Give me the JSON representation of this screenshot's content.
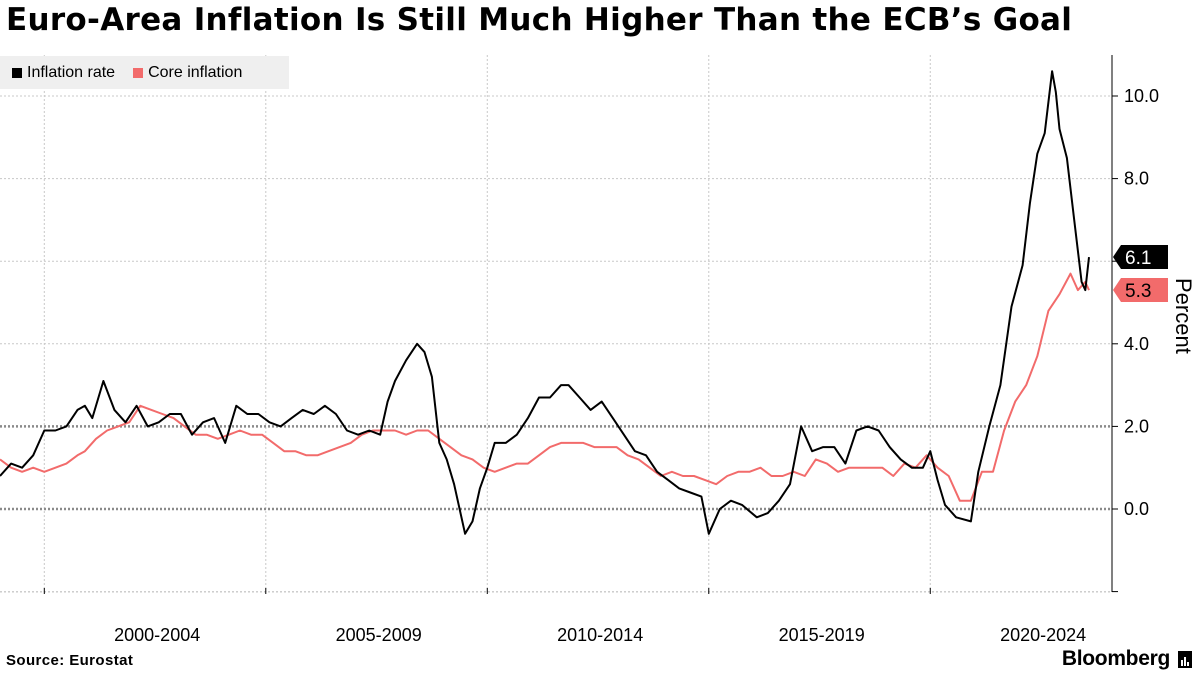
{
  "header": {
    "title": "Euro-Area Inflation Is Still Much Higher Than the ECB’s Goal"
  },
  "legend": {
    "items": [
      {
        "label": "Inflation rate",
        "color": "#000000"
      },
      {
        "label": "Core inflation",
        "color": "#f26b6b"
      }
    ]
  },
  "footer": {
    "source": "Source:  Eurostat",
    "brand": "Bloomberg"
  },
  "chart_data": {
    "type": "line",
    "title": "Euro-Area Inflation Is Still Much Higher Than the ECB’s Goal",
    "ylabel": "Percent",
    "xlabel": "",
    "x_start": "1999-01",
    "x_end": "2023-08",
    "x_tick_labels": [
      "2000-2004",
      "2005-2009",
      "2010-2014",
      "2015-2019",
      "2020-2024"
    ],
    "ylim": [
      -2,
      11
    ],
    "y_ticks": [
      0.0,
      2.0,
      4.0,
      8.0,
      10.0
    ],
    "y_tick_labels": [
      "0.0",
      "2.0",
      "4.0",
      "8.0",
      "10.0"
    ],
    "reference_lines": [
      0,
      2
    ],
    "grid": true,
    "legend_position": "top-left",
    "series": [
      {
        "name": "Inflation rate",
        "color": "#000000",
        "last_value_label": "6.1",
        "points": [
          [
            "1999-01",
            0.8
          ],
          [
            "1999-04",
            1.1
          ],
          [
            "1999-07",
            1.0
          ],
          [
            "1999-10",
            1.3
          ],
          [
            "2000-01",
            1.9
          ],
          [
            "2000-04",
            1.9
          ],
          [
            "2000-07",
            2.0
          ],
          [
            "2000-10",
            2.4
          ],
          [
            "2000-12",
            2.5
          ],
          [
            "2001-02",
            2.2
          ],
          [
            "2001-05",
            3.1
          ],
          [
            "2001-08",
            2.4
          ],
          [
            "2001-11",
            2.1
          ],
          [
            "2002-02",
            2.5
          ],
          [
            "2002-05",
            2.0
          ],
          [
            "2002-08",
            2.1
          ],
          [
            "2002-11",
            2.3
          ],
          [
            "2003-02",
            2.3
          ],
          [
            "2003-05",
            1.8
          ],
          [
            "2003-08",
            2.1
          ],
          [
            "2003-11",
            2.2
          ],
          [
            "2004-02",
            1.6
          ],
          [
            "2004-05",
            2.5
          ],
          [
            "2004-08",
            2.3
          ],
          [
            "2004-11",
            2.3
          ],
          [
            "2005-02",
            2.1
          ],
          [
            "2005-05",
            2.0
          ],
          [
            "2005-08",
            2.2
          ],
          [
            "2005-11",
            2.4
          ],
          [
            "2006-02",
            2.3
          ],
          [
            "2006-05",
            2.5
          ],
          [
            "2006-08",
            2.3
          ],
          [
            "2006-11",
            1.9
          ],
          [
            "2007-02",
            1.8
          ],
          [
            "2007-05",
            1.9
          ],
          [
            "2007-08",
            1.8
          ],
          [
            "2007-10",
            2.6
          ],
          [
            "2007-12",
            3.1
          ],
          [
            "2008-03",
            3.6
          ],
          [
            "2008-06",
            4.0
          ],
          [
            "2008-08",
            3.8
          ],
          [
            "2008-10",
            3.2
          ],
          [
            "2008-12",
            1.6
          ],
          [
            "2009-02",
            1.2
          ],
          [
            "2009-04",
            0.6
          ],
          [
            "2009-07",
            -0.6
          ],
          [
            "2009-09",
            -0.3
          ],
          [
            "2009-11",
            0.5
          ],
          [
            "2010-01",
            1.0
          ],
          [
            "2010-03",
            1.6
          ],
          [
            "2010-06",
            1.6
          ],
          [
            "2010-09",
            1.8
          ],
          [
            "2010-12",
            2.2
          ],
          [
            "2011-03",
            2.7
          ],
          [
            "2011-06",
            2.7
          ],
          [
            "2011-09",
            3.0
          ],
          [
            "2011-11",
            3.0
          ],
          [
            "2012-02",
            2.7
          ],
          [
            "2012-05",
            2.4
          ],
          [
            "2012-08",
            2.6
          ],
          [
            "2012-11",
            2.2
          ],
          [
            "2013-02",
            1.8
          ],
          [
            "2013-05",
            1.4
          ],
          [
            "2013-08",
            1.3
          ],
          [
            "2013-11",
            0.9
          ],
          [
            "2014-02",
            0.7
          ],
          [
            "2014-05",
            0.5
          ],
          [
            "2014-08",
            0.4
          ],
          [
            "2014-11",
            0.3
          ],
          [
            "2015-01",
            -0.6
          ],
          [
            "2015-04",
            0.0
          ],
          [
            "2015-07",
            0.2
          ],
          [
            "2015-10",
            0.1
          ],
          [
            "2016-02",
            -0.2
          ],
          [
            "2016-05",
            -0.1
          ],
          [
            "2016-08",
            0.2
          ],
          [
            "2016-11",
            0.6
          ],
          [
            "2017-02",
            2.0
          ],
          [
            "2017-05",
            1.4
          ],
          [
            "2017-08",
            1.5
          ],
          [
            "2017-11",
            1.5
          ],
          [
            "2018-02",
            1.1
          ],
          [
            "2018-05",
            1.9
          ],
          [
            "2018-08",
            2.0
          ],
          [
            "2018-11",
            1.9
          ],
          [
            "2019-02",
            1.5
          ],
          [
            "2019-05",
            1.2
          ],
          [
            "2019-08",
            1.0
          ],
          [
            "2019-11",
            1.0
          ],
          [
            "2020-01",
            1.4
          ],
          [
            "2020-03",
            0.7
          ],
          [
            "2020-05",
            0.1
          ],
          [
            "2020-08",
            -0.2
          ],
          [
            "2020-12",
            -0.3
          ],
          [
            "2021-02",
            0.9
          ],
          [
            "2021-05",
            2.0
          ],
          [
            "2021-08",
            3.0
          ],
          [
            "2021-11",
            4.9
          ],
          [
            "2022-02",
            5.9
          ],
          [
            "2022-04",
            7.4
          ],
          [
            "2022-06",
            8.6
          ],
          [
            "2022-08",
            9.1
          ],
          [
            "2022-10",
            10.6
          ],
          [
            "2022-11",
            10.1
          ],
          [
            "2022-12",
            9.2
          ],
          [
            "2023-02",
            8.5
          ],
          [
            "2023-04",
            7.0
          ],
          [
            "2023-06",
            5.5
          ],
          [
            "2023-07",
            5.3
          ],
          [
            "2023-08",
            6.1
          ]
        ]
      },
      {
        "name": "Core inflation",
        "color": "#f26b6b",
        "last_value_label": "5.3",
        "points": [
          [
            "1999-01",
            1.2
          ],
          [
            "1999-04",
            1.0
          ],
          [
            "1999-07",
            0.9
          ],
          [
            "1999-10",
            1.0
          ],
          [
            "2000-01",
            0.9
          ],
          [
            "2000-04",
            1.0
          ],
          [
            "2000-07",
            1.1
          ],
          [
            "2000-10",
            1.3
          ],
          [
            "2000-12",
            1.4
          ],
          [
            "2001-03",
            1.7
          ],
          [
            "2001-06",
            1.9
          ],
          [
            "2001-09",
            2.0
          ],
          [
            "2001-12",
            2.1
          ],
          [
            "2002-03",
            2.5
          ],
          [
            "2002-06",
            2.4
          ],
          [
            "2002-09",
            2.3
          ],
          [
            "2002-12",
            2.2
          ],
          [
            "2003-03",
            2.0
          ],
          [
            "2003-06",
            1.8
          ],
          [
            "2003-09",
            1.8
          ],
          [
            "2003-12",
            1.7
          ],
          [
            "2004-03",
            1.8
          ],
          [
            "2004-06",
            1.9
          ],
          [
            "2004-09",
            1.8
          ],
          [
            "2004-12",
            1.8
          ],
          [
            "2005-03",
            1.6
          ],
          [
            "2005-06",
            1.4
          ],
          [
            "2005-09",
            1.4
          ],
          [
            "2005-12",
            1.3
          ],
          [
            "2006-03",
            1.3
          ],
          [
            "2006-06",
            1.4
          ],
          [
            "2006-09",
            1.5
          ],
          [
            "2006-12",
            1.6
          ],
          [
            "2007-03",
            1.8
          ],
          [
            "2007-06",
            1.9
          ],
          [
            "2007-09",
            1.9
          ],
          [
            "2007-12",
            1.9
          ],
          [
            "2008-03",
            1.8
          ],
          [
            "2008-06",
            1.9
          ],
          [
            "2008-09",
            1.9
          ],
          [
            "2008-12",
            1.7
          ],
          [
            "2009-03",
            1.5
          ],
          [
            "2009-06",
            1.3
          ],
          [
            "2009-09",
            1.2
          ],
          [
            "2009-12",
            1.0
          ],
          [
            "2010-03",
            0.9
          ],
          [
            "2010-06",
            1.0
          ],
          [
            "2010-09",
            1.1
          ],
          [
            "2010-12",
            1.1
          ],
          [
            "2011-03",
            1.3
          ],
          [
            "2011-06",
            1.5
          ],
          [
            "2011-09",
            1.6
          ],
          [
            "2011-12",
            1.6
          ],
          [
            "2012-03",
            1.6
          ],
          [
            "2012-06",
            1.5
          ],
          [
            "2012-09",
            1.5
          ],
          [
            "2012-12",
            1.5
          ],
          [
            "2013-03",
            1.3
          ],
          [
            "2013-06",
            1.2
          ],
          [
            "2013-09",
            1.0
          ],
          [
            "2013-12",
            0.8
          ],
          [
            "2014-03",
            0.9
          ],
          [
            "2014-06",
            0.8
          ],
          [
            "2014-09",
            0.8
          ],
          [
            "2014-12",
            0.7
          ],
          [
            "2015-03",
            0.6
          ],
          [
            "2015-06",
            0.8
          ],
          [
            "2015-09",
            0.9
          ],
          [
            "2015-12",
            0.9
          ],
          [
            "2016-03",
            1.0
          ],
          [
            "2016-06",
            0.8
          ],
          [
            "2016-09",
            0.8
          ],
          [
            "2016-12",
            0.9
          ],
          [
            "2017-03",
            0.8
          ],
          [
            "2017-06",
            1.2
          ],
          [
            "2017-09",
            1.1
          ],
          [
            "2017-12",
            0.9
          ],
          [
            "2018-03",
            1.0
          ],
          [
            "2018-06",
            1.0
          ],
          [
            "2018-09",
            1.0
          ],
          [
            "2018-12",
            1.0
          ],
          [
            "2019-03",
            0.8
          ],
          [
            "2019-06",
            1.1
          ],
          [
            "2019-09",
            1.0
          ],
          [
            "2019-12",
            1.3
          ],
          [
            "2020-03",
            1.0
          ],
          [
            "2020-06",
            0.8
          ],
          [
            "2020-09",
            0.2
          ],
          [
            "2020-12",
            0.2
          ],
          [
            "2021-03",
            0.9
          ],
          [
            "2021-06",
            0.9
          ],
          [
            "2021-09",
            1.9
          ],
          [
            "2021-12",
            2.6
          ],
          [
            "2022-03",
            3.0
          ],
          [
            "2022-06",
            3.7
          ],
          [
            "2022-09",
            4.8
          ],
          [
            "2022-12",
            5.2
          ],
          [
            "2023-03",
            5.7
          ],
          [
            "2023-05",
            5.3
          ],
          [
            "2023-07",
            5.5
          ],
          [
            "2023-08",
            5.3
          ]
        ]
      }
    ]
  }
}
